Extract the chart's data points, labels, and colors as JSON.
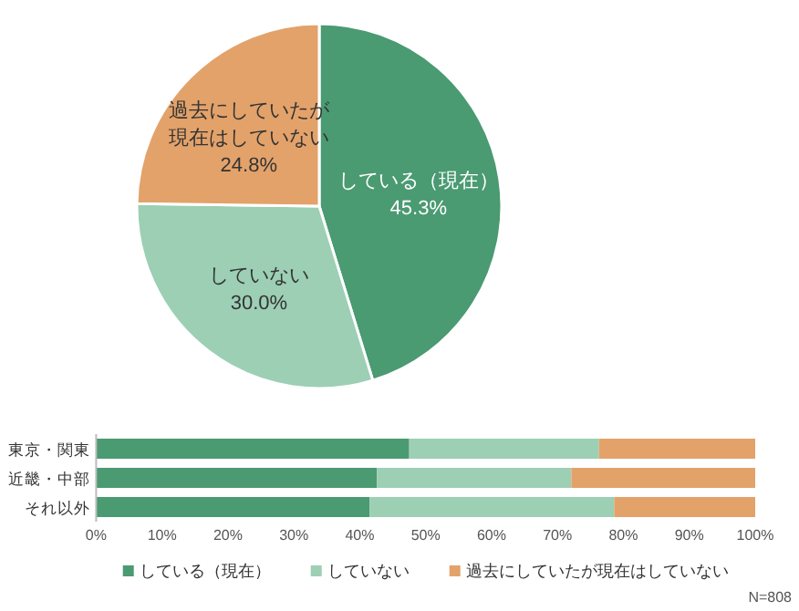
{
  "chart_data": [
    {
      "type": "pie",
      "categories": [
        "している（現在）",
        "していない",
        "過去にしていたが現在はしていない"
      ],
      "values": [
        45.3,
        30.0,
        24.8
      ],
      "colors": [
        "#4a9a72",
        "#9ccfb4",
        "#e3a26a"
      ],
      "value_labels": [
        "45.3%",
        "30.0%",
        "24.8%"
      ],
      "legend": false
    },
    {
      "type": "bar",
      "orientation": "horizontal",
      "stacked": true,
      "categories": [
        "東京・関東",
        "近畿・中部",
        "それ以外"
      ],
      "series": [
        {
          "name": "している（現在）",
          "color": "#4a9a72",
          "values": [
            47.5,
            42.6,
            41.5
          ]
        },
        {
          "name": "していない",
          "color": "#9ccfb4",
          "values": [
            28.8,
            29.5,
            37.1
          ]
        },
        {
          "name": "過去にしていたが現在はしていない",
          "color": "#e3a26a",
          "values": [
            23.7,
            27.9,
            21.4
          ]
        }
      ],
      "xlim": [
        0,
        100
      ],
      "xticks": [
        {
          "value": 0,
          "label": "0%"
        },
        {
          "value": 10,
          "label": "10%"
        },
        {
          "value": 20,
          "label": "20%"
        },
        {
          "value": 30,
          "label": "30%"
        },
        {
          "value": 40,
          "label": "40%"
        },
        {
          "value": 50,
          "label": "50%"
        },
        {
          "value": 60,
          "label": "60%"
        },
        {
          "value": 70,
          "label": "70%"
        },
        {
          "value": 80,
          "label": "80%"
        },
        {
          "value": 90,
          "label": "90%"
        },
        {
          "value": 100,
          "label": "100%"
        }
      ],
      "legend": "bottom",
      "annotations": [
        "N=808"
      ]
    }
  ]
}
